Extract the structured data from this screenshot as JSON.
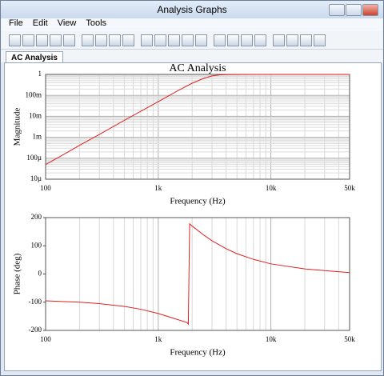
{
  "window": {
    "title": "Analysis Graphs"
  },
  "menu": [
    "File",
    "Edit",
    "View",
    "Tools"
  ],
  "tab": "AC Analysis",
  "chart_data": [
    {
      "type": "line",
      "title": "AC Analysis",
      "x_label": "Frequency (Hz)",
      "y_label": "Magnitude",
      "xscale": "log",
      "yscale": "log",
      "grid": "xy",
      "color": "#e02020",
      "xlim": [
        100,
        50000
      ],
      "xticks": [
        100,
        {
          "value": 1000,
          "label": "1k"
        },
        {
          "value": 10000,
          "label": "10k"
        },
        {
          "value": 50000,
          "label": "50k"
        }
      ],
      "minor_xticks": [
        200,
        300,
        400,
        500,
        600,
        700,
        800,
        900,
        2000,
        3000,
        4000,
        5000,
        6000,
        7000,
        8000,
        9000,
        20000,
        30000,
        40000
      ],
      "ylim": [
        1e-05,
        1
      ],
      "yticks": [
        {
          "value": 1e-05,
          "label": "10µ"
        },
        {
          "value": 0.0001,
          "label": "100µ"
        },
        {
          "value": 0.001,
          "label": "1m"
        },
        {
          "value": 0.01,
          "label": "10m"
        },
        {
          "value": 0.1,
          "label": "100m"
        },
        1
      ],
      "x": [
        100,
        150,
        200,
        300,
        500,
        700,
        1000,
        1500,
        2000,
        2500,
        3000,
        3500,
        4000,
        5000,
        7000,
        10000,
        20000,
        50000
      ],
      "values": [
        5e-05,
        0.00017,
        0.00041,
        0.00137,
        0.0064,
        0.0174,
        0.05,
        0.17,
        0.38,
        0.63,
        0.85,
        0.95,
        0.98,
        0.99,
        1,
        1,
        1,
        1
      ]
    },
    {
      "type": "line",
      "x_label": "Frequency (Hz)",
      "y_label": "Phase (deg)",
      "xscale": "log",
      "yscale": "linear",
      "grid": "x",
      "color": "#e02020",
      "xlim": [
        100,
        50000
      ],
      "xticks": [
        100,
        {
          "value": 1000,
          "label": "1k"
        },
        {
          "value": 10000,
          "label": "10k"
        },
        {
          "value": 50000,
          "label": "50k"
        }
      ],
      "minor_xticks": [
        200,
        300,
        400,
        500,
        600,
        700,
        800,
        900,
        2000,
        3000,
        4000,
        5000,
        6000,
        7000,
        8000,
        9000,
        20000,
        30000,
        40000
      ],
      "ylim": [
        -200,
        200
      ],
      "yticks": [
        -200,
        -100,
        0,
        100,
        200
      ],
      "x": [
        100,
        200,
        300,
        500,
        700,
        1000,
        1500,
        1800,
        1850,
        1900,
        2000,
        2500,
        3000,
        4000,
        5000,
        7000,
        10000,
        20000,
        30000,
        50000
      ],
      "values": [
        -95,
        -100,
        -105,
        -115,
        -125,
        -140,
        -162,
        -172,
        -178,
        178,
        170,
        140,
        118,
        90,
        72,
        52,
        36,
        18,
        12,
        5
      ]
    }
  ]
}
